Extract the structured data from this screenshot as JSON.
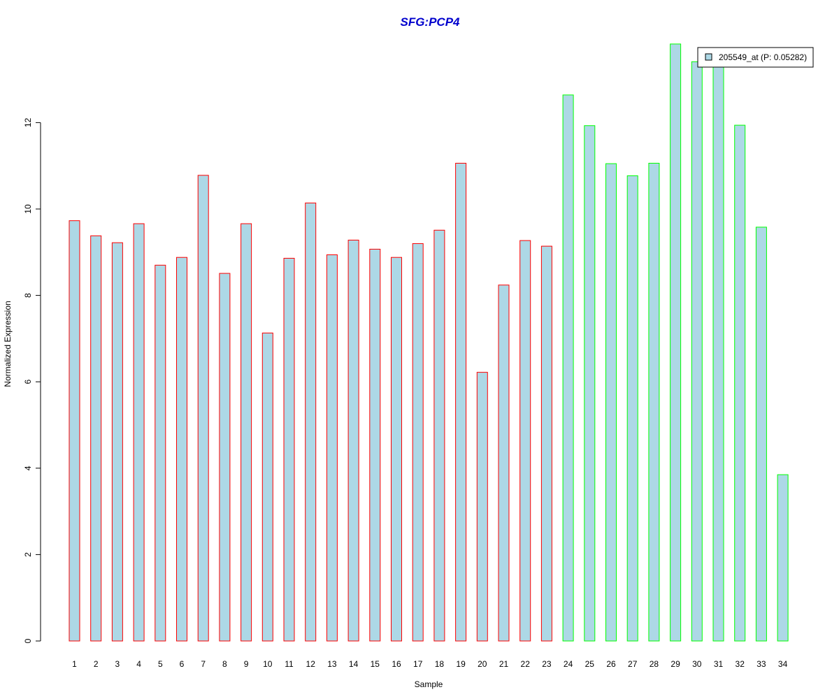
{
  "chart_data": {
    "type": "bar",
    "title": "SFG:PCP4",
    "xlabel": "Sample",
    "ylabel": "Normalized Expression",
    "categories": [
      "1",
      "2",
      "3",
      "4",
      "5",
      "6",
      "7",
      "8",
      "9",
      "10",
      "11",
      "12",
      "13",
      "14",
      "15",
      "16",
      "17",
      "18",
      "19",
      "20",
      "21",
      "22",
      "23",
      "24",
      "25",
      "26",
      "27",
      "28",
      "29",
      "30",
      "31",
      "32",
      "33",
      "34"
    ],
    "values": [
      9.73,
      9.38,
      9.22,
      9.66,
      8.7,
      8.88,
      10.78,
      8.51,
      9.66,
      7.13,
      8.86,
      10.14,
      8.94,
      9.28,
      9.07,
      8.88,
      9.2,
      9.51,
      11.06,
      6.22,
      8.24,
      9.27,
      9.14,
      12.64,
      11.93,
      11.05,
      10.77,
      11.06,
      13.82,
      13.41,
      13.38,
      11.94,
      9.58,
      3.85
    ],
    "groups": [
      "red",
      "red",
      "red",
      "red",
      "red",
      "red",
      "red",
      "red",
      "red",
      "red",
      "red",
      "red",
      "red",
      "red",
      "red",
      "red",
      "red",
      "red",
      "red",
      "red",
      "red",
      "red",
      "red",
      "green",
      "green",
      "green",
      "green",
      "green",
      "green",
      "green",
      "green",
      "green",
      "green",
      "green"
    ],
    "yticks": [
      0,
      2,
      4,
      6,
      8,
      10,
      12
    ],
    "ylim": [
      0,
      14
    ],
    "grid": false,
    "legend": {
      "position": "top-right",
      "entries": [
        {
          "label": "205549_at (P: 0.05282)",
          "color": "#add8e6"
        }
      ]
    },
    "colors": {
      "bar_fill": "#add8e6",
      "edge_red": "#ff0000",
      "edge_green": "#00ff00",
      "title": "#0000cd"
    }
  }
}
